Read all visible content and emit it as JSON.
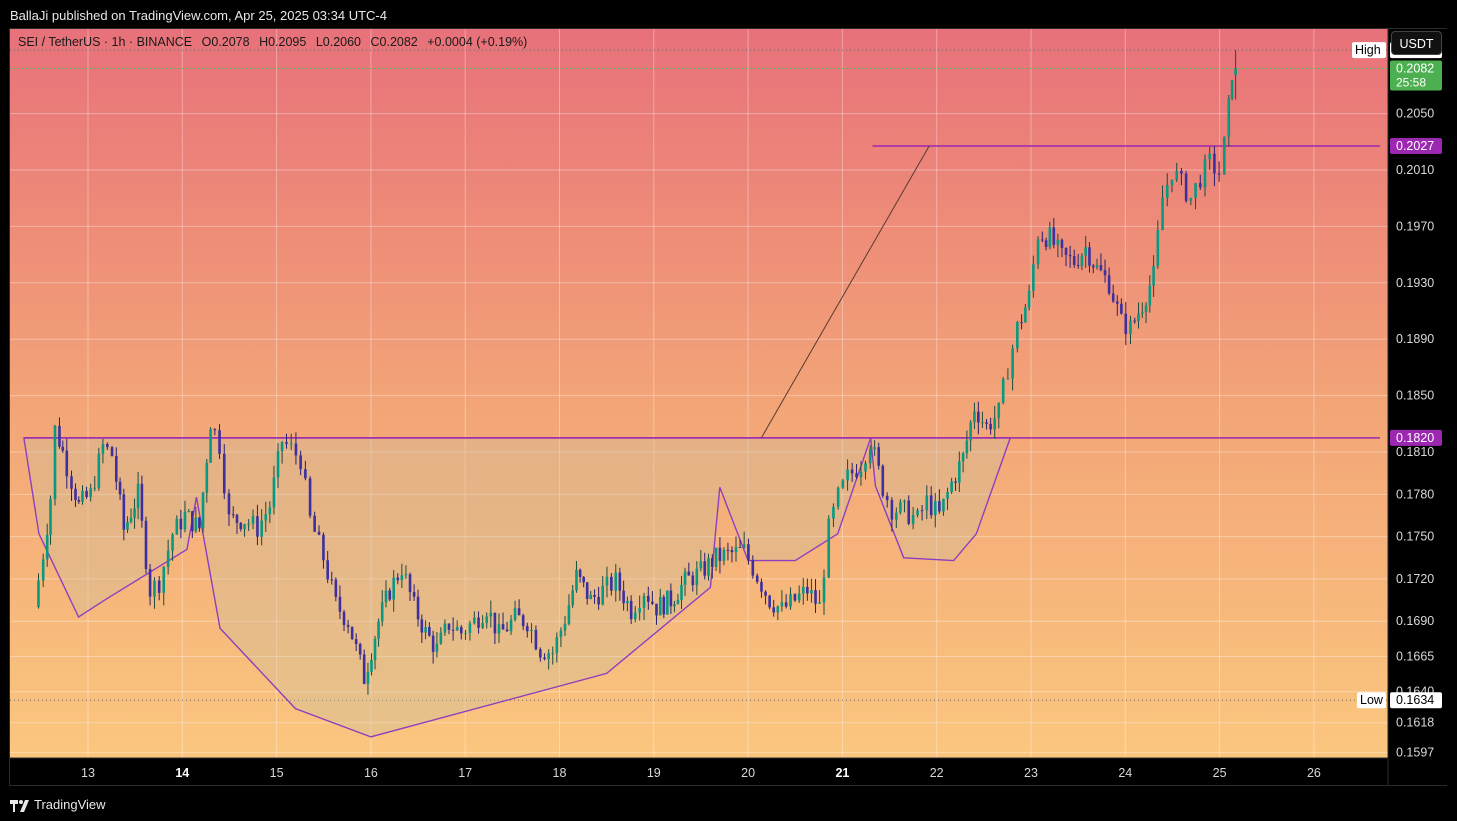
{
  "header": {
    "published_text": "BallaJi published on TradingView.com, Apr 25, 2025 03:34 UTC-4"
  },
  "legend": {
    "symbol": "SEI / TetherUS · 1h · BINANCE",
    "open": "O0.2078",
    "high": "H0.2095",
    "low": "L0.2060",
    "close": "C0.2082",
    "change": "+0.0004 (+0.19%)"
  },
  "currency_label": "USDT",
  "footer": {
    "brand": "TradingView"
  },
  "colors": {
    "bullish": "#089981",
    "bearish": "#3d2fa0",
    "level_line": "#9c27b0",
    "current_price_bg": "#4caf50",
    "bg_top": "#e8717a",
    "bg_bottom": "#fbc97f"
  },
  "chart_data": {
    "type": "candlestick",
    "timeframe": "1h",
    "x_ticks": [
      "13",
      "14",
      "15",
      "16",
      "17",
      "18",
      "19",
      "20",
      "21",
      "22",
      "23",
      "24",
      "25",
      "26"
    ],
    "bold_x_ticks": [
      "14",
      "21"
    ],
    "y_ticks": [
      0.205,
      0.201,
      0.197,
      0.193,
      0.189,
      0.185,
      0.181,
      0.178,
      0.175,
      0.172,
      0.169,
      0.1665,
      0.164,
      0.1618,
      0.1597
    ],
    "y_range": [
      0.1593,
      0.211
    ],
    "price_labels": {
      "high_label": "High",
      "high_value": "0.2095",
      "current_value": "0.2082",
      "countdown": "25:58",
      "resistance_value": "0.2027",
      "neckline_value": "0.1820",
      "low_label": "Low",
      "low_value": "0.1634"
    },
    "levels": {
      "high": 0.2095,
      "current": 0.2082,
      "resistance": 0.2027,
      "neckline": 0.182,
      "low": 0.1634
    },
    "ohlc_anchor_path": [
      [
        12.45,
        0.17
      ],
      [
        12.55,
        0.1738
      ],
      [
        12.62,
        0.1778
      ],
      [
        12.68,
        0.1826
      ],
      [
        12.75,
        0.181
      ],
      [
        12.85,
        0.179
      ],
      [
        12.92,
        0.1772
      ],
      [
        13.05,
        0.178
      ],
      [
        13.18,
        0.1814
      ],
      [
        13.28,
        0.1808
      ],
      [
        13.4,
        0.1755
      ],
      [
        13.55,
        0.178
      ],
      [
        13.68,
        0.1712
      ],
      [
        13.78,
        0.1718
      ],
      [
        13.92,
        0.1752
      ],
      [
        14.05,
        0.1765
      ],
      [
        14.2,
        0.1756
      ],
      [
        14.32,
        0.1832
      ],
      [
        14.42,
        0.1815
      ],
      [
        14.52,
        0.1762
      ],
      [
        14.68,
        0.1762
      ],
      [
        14.82,
        0.1756
      ],
      [
        14.95,
        0.1772
      ],
      [
        15.08,
        0.1818
      ],
      [
        15.18,
        0.1812
      ],
      [
        15.28,
        0.1805
      ],
      [
        15.38,
        0.1762
      ],
      [
        15.52,
        0.1735
      ],
      [
        15.65,
        0.1702
      ],
      [
        15.78,
        0.169
      ],
      [
        15.95,
        0.165
      ],
      [
        16.1,
        0.169
      ],
      [
        16.22,
        0.1712
      ],
      [
        16.35,
        0.1728
      ],
      [
        16.48,
        0.17
      ],
      [
        16.6,
        0.1682
      ],
      [
        16.72,
        0.167
      ],
      [
        16.85,
        0.1688
      ],
      [
        16.98,
        0.1682
      ],
      [
        17.12,
        0.169
      ],
      [
        17.25,
        0.17
      ],
      [
        17.38,
        0.168
      ],
      [
        17.55,
        0.1692
      ],
      [
        17.68,
        0.169
      ],
      [
        17.82,
        0.167
      ],
      [
        17.95,
        0.1668
      ],
      [
        18.08,
        0.1692
      ],
      [
        18.2,
        0.1722
      ],
      [
        18.35,
        0.1705
      ],
      [
        18.48,
        0.1712
      ],
      [
        18.62,
        0.1718
      ],
      [
        18.78,
        0.1698
      ],
      [
        18.92,
        0.1712
      ],
      [
        19.05,
        0.17
      ],
      [
        19.2,
        0.1705
      ],
      [
        19.35,
        0.1718
      ],
      [
        19.52,
        0.1725
      ],
      [
        19.68,
        0.1735
      ],
      [
        19.85,
        0.1738
      ],
      [
        19.98,
        0.174
      ],
      [
        20.12,
        0.1722
      ],
      [
        20.25,
        0.1705
      ],
      [
        20.38,
        0.1698
      ],
      [
        20.52,
        0.1705
      ],
      [
        20.65,
        0.1712
      ],
      [
        20.78,
        0.17
      ],
      [
        20.88,
        0.1755
      ],
      [
        20.98,
        0.1778
      ],
      [
        21.08,
        0.1792
      ],
      [
        21.22,
        0.1802
      ],
      [
        21.32,
        0.1818
      ],
      [
        21.45,
        0.1785
      ],
      [
        21.55,
        0.177
      ],
      [
        21.68,
        0.1768
      ],
      [
        21.82,
        0.1762
      ],
      [
        21.92,
        0.1775
      ],
      [
        22.05,
        0.1765
      ],
      [
        22.18,
        0.1788
      ],
      [
        22.3,
        0.1806
      ],
      [
        22.42,
        0.1842
      ],
      [
        22.55,
        0.1828
      ],
      [
        22.68,
        0.1838
      ],
      [
        22.78,
        0.187
      ],
      [
        22.88,
        0.1898
      ],
      [
        23.0,
        0.192
      ],
      [
        23.1,
        0.1965
      ],
      [
        23.22,
        0.1962
      ],
      [
        23.35,
        0.1948
      ],
      [
        23.48,
        0.1945
      ],
      [
        23.6,
        0.1955
      ],
      [
        23.72,
        0.194
      ],
      [
        23.85,
        0.193
      ],
      [
        23.98,
        0.1902
      ],
      [
        24.08,
        0.1898
      ],
      [
        24.2,
        0.1915
      ],
      [
        24.32,
        0.1935
      ],
      [
        24.42,
        0.199
      ],
      [
        24.52,
        0.201
      ],
      [
        24.62,
        0.2
      ],
      [
        24.72,
        0.199
      ],
      [
        24.82,
        0.2005
      ],
      [
        24.92,
        0.2015
      ],
      [
        25.02,
        0.2008
      ],
      [
        25.08,
        0.2028
      ],
      [
        25.15,
        0.208
      ]
    ],
    "overlay_lines": [
      {
        "kind": "neckline",
        "from": [
          12.32,
          0.182
        ],
        "to": [
          26.7,
          0.182
        ]
      },
      {
        "kind": "resistance",
        "from": [
          21.32,
          0.2027
        ],
        "to": [
          26.7,
          0.2027
        ]
      },
      {
        "kind": "target",
        "from": [
          20.14,
          0.182
        ],
        "to": [
          21.92,
          0.2027
        ]
      }
    ],
    "pattern_outline": [
      [
        12.32,
        0.182
      ],
      [
        12.48,
        0.1752
      ],
      [
        12.9,
        0.1693
      ],
      [
        13.2,
        0.1706
      ],
      [
        14.05,
        0.1741
      ],
      [
        14.15,
        0.1778
      ],
      [
        14.4,
        0.1685
      ],
      [
        15.2,
        0.1628
      ],
      [
        16.0,
        0.1608
      ],
      [
        18.5,
        0.1653
      ],
      [
        19.6,
        0.1714
      ],
      [
        19.7,
        0.1785
      ],
      [
        20.0,
        0.1733
      ],
      [
        20.5,
        0.1733
      ],
      [
        20.95,
        0.1752
      ],
      [
        21.3,
        0.182
      ]
    ]
  }
}
